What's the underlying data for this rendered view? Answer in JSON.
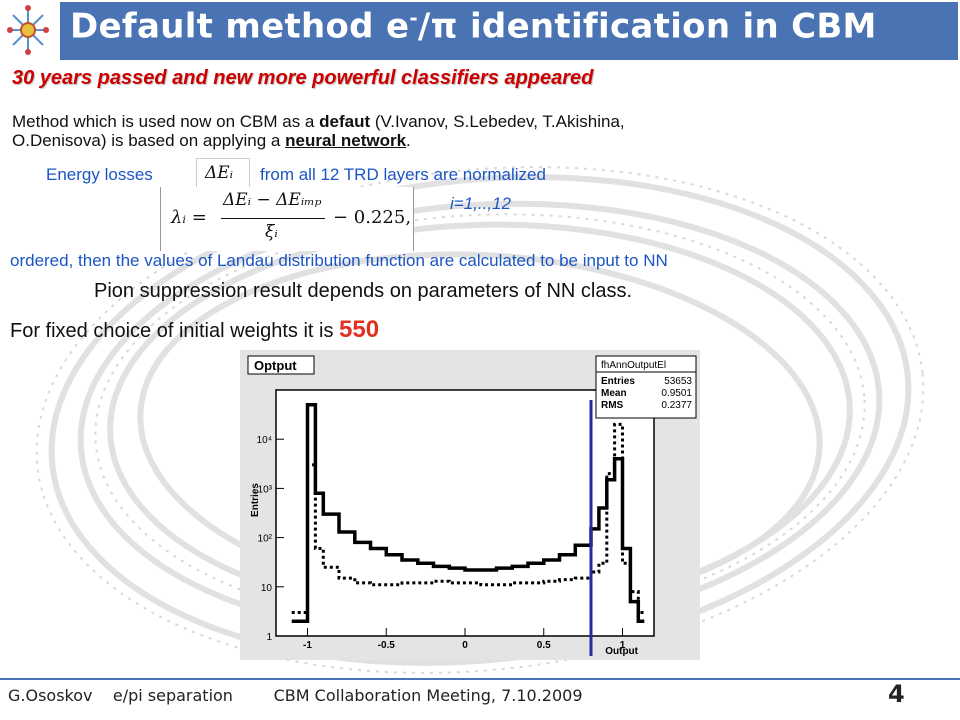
{
  "slide": {
    "title_main": "Default method e",
    "title_sup": "-",
    "title_rest": "/π identification in CBM",
    "subtitle": "30 years passed and new more powerful classifiers appeared",
    "p1_a": "Method which is used now on CBM as a ",
    "p1_bold": "defaut",
    "p1_b": " (V.Ivanov, S.Lebedev, T.Akishina,",
    "p1_line2_a": "O.Denisova) is based on applying a ",
    "p1_line2_u": "neural network",
    "p1_line2_end": ".",
    "energy_a": "Energy losses",
    "energy_b": "from all 12 TRD layers are normalized",
    "formula_small": "ΔEᵢ",
    "formula_lambda": "λᵢ =",
    "formula_num": "ΔEᵢ − ΔEᵢₘₚ",
    "formula_den": "ξᵢ",
    "formula_tail": "− 0.225,",
    "index_range": "i=1,..,12",
    "ordered_line": "ordered, then the values of Landau distribution function are calculated to be input to NN",
    "pion_line": "Pion suppression result depends on parameters of  NN class.",
    "fixed_a": "For fixed choice of initial weights it is ",
    "fixed_value": "550"
  },
  "plot": {
    "title": "Optput",
    "stats_title": "fhAnnOutputEl",
    "stats_rows": [
      {
        "label": "Entries",
        "value": "53653"
      },
      {
        "label": "Mean",
        "value": "0.9501"
      },
      {
        "label": "RMS",
        "value": "0.2377"
      }
    ],
    "ylabel": "Entries",
    "xlabel": "Output",
    "yticks": [
      "10⁴",
      "10³",
      "10²",
      "10",
      "1"
    ],
    "xticks": [
      "-1",
      "-0.5",
      "0",
      "0.5",
      "1"
    ],
    "cut_value": 0.8
  },
  "chart_data": {
    "type": "line",
    "title": "Optput",
    "xlabel": "Output",
    "ylabel": "Entries",
    "log_y": true,
    "xlim": [
      -1.2,
      1.2
    ],
    "ylim": [
      1,
      100000
    ],
    "series": [
      {
        "name": "",
        "style": "solid",
        "x": [
          -1.1,
          -1.0,
          -0.95,
          -0.9,
          -0.8,
          -0.7,
          -0.6,
          -0.5,
          -0.4,
          -0.3,
          -0.2,
          -0.1,
          0.0,
          0.1,
          0.2,
          0.3,
          0.4,
          0.5,
          0.6,
          0.7,
          0.8,
          0.85,
          0.9,
          0.95,
          1.0,
          1.05,
          1.1
        ],
        "y": [
          2,
          50000,
          800,
          300,
          130,
          80,
          60,
          45,
          35,
          30,
          26,
          24,
          22,
          22,
          24,
          26,
          30,
          35,
          45,
          70,
          150,
          400,
          1500,
          4000,
          60,
          5,
          2
        ]
      },
      {
        "name": "",
        "style": "dotted",
        "x": [
          -1.1,
          -1.0,
          -0.95,
          -0.9,
          -0.8,
          -0.7,
          -0.6,
          -0.5,
          -0.4,
          -0.3,
          -0.2,
          -0.1,
          0.0,
          0.1,
          0.2,
          0.3,
          0.4,
          0.5,
          0.6,
          0.7,
          0.8,
          0.85,
          0.9,
          0.95,
          1.0,
          1.05,
          1.1
        ],
        "y": [
          3,
          3000,
          60,
          25,
          15,
          12,
          11,
          11,
          12,
          12,
          13,
          12,
          12,
          11,
          11,
          12,
          12,
          13,
          14,
          15,
          20,
          30,
          2000,
          20000,
          30,
          8,
          3
        ]
      }
    ]
  },
  "footer": {
    "author": "G.Ososkov",
    "topic": "e/pi separation",
    "meeting": "CBM Collaboration Meeting, 7.10.2009",
    "page": "4"
  },
  "colors": {
    "title_bar": "#4a73b3",
    "subtitle": "#cc0000",
    "blue_text": "#1b55c4",
    "accent_value": "#e03020"
  },
  "icons": {
    "logo": "snowflake-logo-icon"
  }
}
